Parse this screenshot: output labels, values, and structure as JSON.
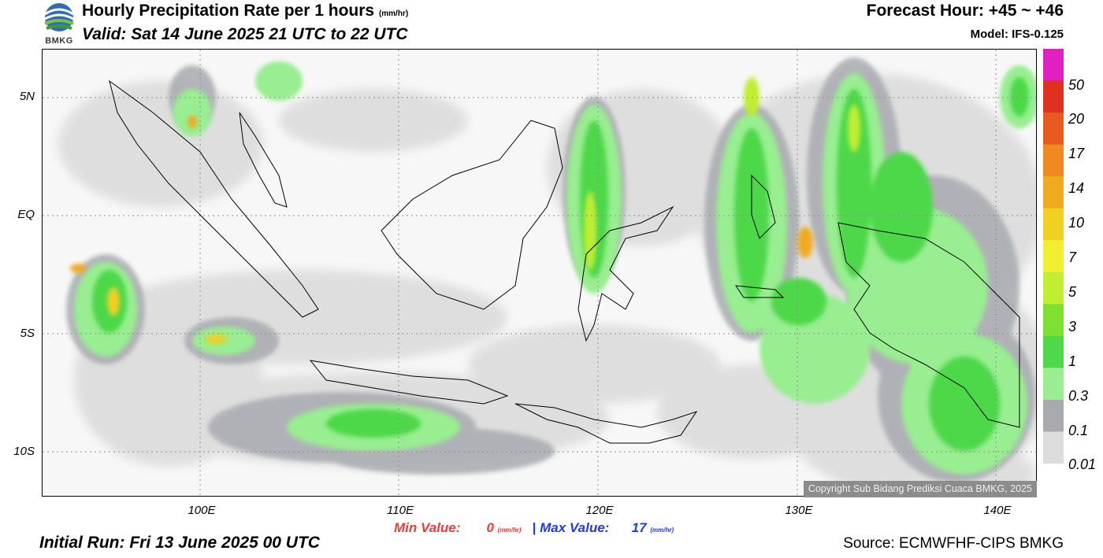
{
  "header": {
    "logo_text": "BMKG",
    "title": "Hourly Precipitation Rate per 1 hours",
    "title_unit": "(mm/hr)",
    "valid": "Valid: Sat 14 June 2025 21 UTC to 22 UTC",
    "forecast_hour": "Forecast Hour: +45 ~ +46",
    "model": "Model: IFS-0.125"
  },
  "map": {
    "lat_labels": [
      "5N",
      "EQ",
      "5S",
      "10S"
    ],
    "lon_labels": [
      "100E",
      "110E",
      "120E",
      "130E",
      "140E"
    ],
    "copyright": "Copyright Sub Bidang Prediksi Cuaca BMKG, 2025"
  },
  "colorbar": {
    "labels": [
      "50",
      "20",
      "17",
      "14",
      "10",
      "7",
      "5",
      "3",
      "1",
      "0.3",
      "0.1",
      "0.01"
    ],
    "colors": [
      "#e020c0",
      "#e03020",
      "#e85a20",
      "#ee8a20",
      "#f0aa20",
      "#f0d020",
      "#f0f030",
      "#c0ee30",
      "#7ee030",
      "#4ed84a",
      "#98ee90",
      "#a8aab0",
      "#dcdcdc"
    ]
  },
  "footer": {
    "min_label": "Min Value:",
    "min_value": "0",
    "max_label": "Max Value:",
    "max_value": "17",
    "unit": "(mm/hr)",
    "separator": "|",
    "initial_run": "Initial Run: Fri 13 June 2025 00 UTC",
    "source": "Source: ECMWFHF-CIPS BMKG"
  }
}
